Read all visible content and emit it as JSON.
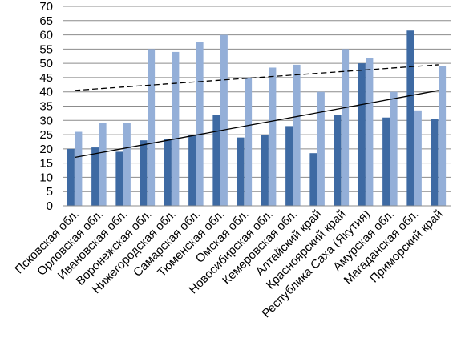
{
  "chart_data": {
    "type": "bar",
    "title": "",
    "xlabel": "",
    "ylabel": "",
    "ylim": [
      0,
      70
    ],
    "yticks": [
      "0",
      "5",
      "10",
      "15",
      "20",
      "25",
      "30",
      "35",
      "40",
      "45",
      "50",
      "55",
      "60",
      "65",
      "70"
    ],
    "grid": true,
    "legend": "none",
    "categories": [
      "Псковская обл.",
      "Орловская обл.",
      "Ивановская обл.",
      "Воронежская обл.",
      "Нижегородская обл.",
      "Самарская обл.",
      "Тюменская обл.",
      "Омская обл.",
      "Новосибирская обл.",
      "Кемеровская обл.",
      "Алтайский край",
      "Красноярский край",
      "Республика Саха (Якутия)",
      "Амурская обл.",
      "Магаданская обл.",
      "Приморский край"
    ],
    "series": [
      {
        "color": "#3e6aa3",
        "values": [
          20,
          20.5,
          19,
          23,
          23.5,
          25,
          32,
          24,
          25,
          28,
          18.5,
          32,
          50,
          31,
          61.5,
          30.5
        ]
      },
      {
        "color": "#94afd8",
        "values": [
          26,
          29,
          29,
          55,
          54,
          57.5,
          60,
          45,
          48.5,
          49.5,
          40,
          55,
          52,
          40,
          33.5,
          49
        ]
      }
    ],
    "trendlines": [
      {
        "series": 0,
        "style": "solid",
        "color": "#000000",
        "start": 17,
        "end": 40.5
      },
      {
        "series": 1,
        "style": "dashed",
        "color": "#000000",
        "start": 40.5,
        "end": 49.5
      }
    ]
  }
}
